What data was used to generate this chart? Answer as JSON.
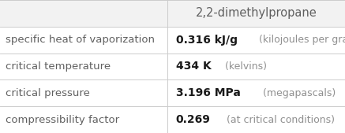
{
  "title": "2,2-dimethylpropane",
  "rows": [
    {
      "property": "specific heat of vaporization",
      "value_bold": "0.316 kJ/g",
      "value_light": " (kilojoules per gram)"
    },
    {
      "property": "critical temperature",
      "value_bold": "434 K",
      "value_light": " (kelvins)"
    },
    {
      "property": "critical pressure",
      "value_bold": "3.196 MPa",
      "value_light": " (megapascals)"
    },
    {
      "property": "compressibility factor",
      "value_bold": "0.269",
      "value_light": "  (at critical conditions)"
    }
  ],
  "col_split": 0.485,
  "header_bg": "#f2f2f2",
  "line_color": "#cccccc",
  "text_color_property": "#606060",
  "text_color_bold": "#1a1a1a",
  "text_color_light": "#909090",
  "background_color": "#ffffff",
  "title_fontsize": 10.5,
  "property_fontsize": 9.5,
  "value_bold_fontsize": 10.0,
  "value_light_fontsize": 9.0
}
